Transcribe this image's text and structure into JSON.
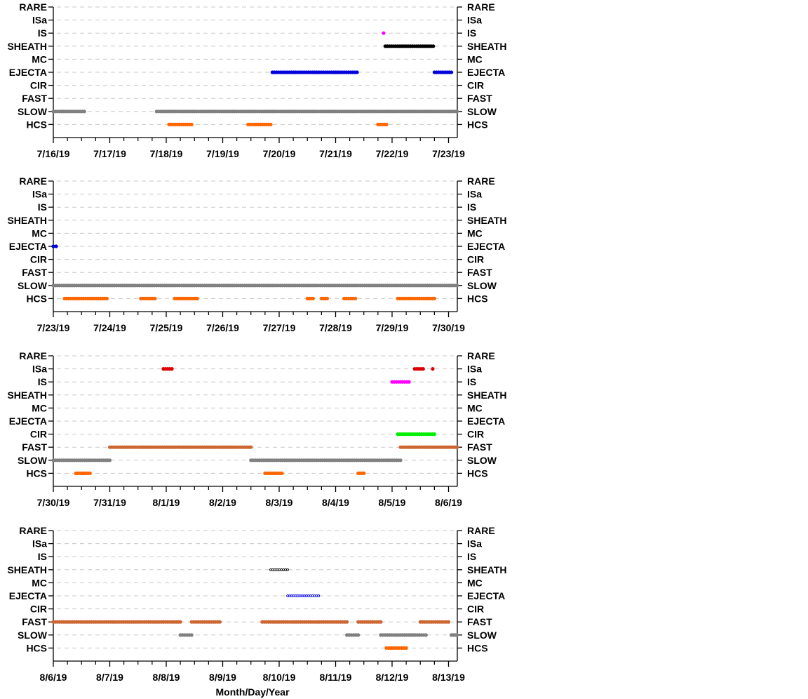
{
  "chart_data": {
    "type": "scatter",
    "xlabel": "Month/Day/Year",
    "categories": [
      "RARE",
      "ISa",
      "IS",
      "SHEATH",
      "MC",
      "EJECTA",
      "CIR",
      "FAST",
      "SLOW",
      "HCS"
    ],
    "grid": "horizontal dashed",
    "colors": {
      "SLOW": "#808080",
      "HCS": "#ff6600",
      "FAST": "#cc6633",
      "EJECTA": "#0000dd",
      "SHEATH": "#000000",
      "IS": "#ff00ff",
      "ISa": "#dd0000",
      "CIR": "#00ee00"
    },
    "panels": [
      {
        "xticks": [
          "7/16/19",
          "7/17/19",
          "7/18/19",
          "7/19/19",
          "7/20/19",
          "7/21/19",
          "7/22/19",
          "7/23/19"
        ],
        "intervals": [
          {
            "category": "SLOW",
            "start": 0.0,
            "end": 0.55
          },
          {
            "category": "SLOW",
            "start": 1.83,
            "end": 7.15
          },
          {
            "category": "HCS",
            "start": 2.05,
            "end": 2.45
          },
          {
            "category": "HCS",
            "start": 3.45,
            "end": 3.85
          },
          {
            "category": "HCS",
            "start": 5.75,
            "end": 5.9
          },
          {
            "category": "EJECTA",
            "start": 3.88,
            "end": 5.38
          },
          {
            "category": "EJECTA",
            "start": 6.75,
            "end": 7.05
          },
          {
            "category": "IS",
            "start": 5.85,
            "end": 5.85
          },
          {
            "category": "SHEATH",
            "start": 5.88,
            "end": 6.73
          }
        ]
      },
      {
        "xticks": [
          "7/23/19",
          "7/24/19",
          "7/25/19",
          "7/26/19",
          "7/27/19",
          "7/28/19",
          "7/29/19",
          "7/30/19"
        ],
        "intervals": [
          {
            "category": "EJECTA",
            "start": 0.0,
            "end": 0.05
          },
          {
            "category": "SLOW",
            "start": 0.0,
            "end": 7.15
          },
          {
            "category": "HCS",
            "start": 0.2,
            "end": 0.95
          },
          {
            "category": "HCS",
            "start": 1.55,
            "end": 1.8
          },
          {
            "category": "HCS",
            "start": 2.15,
            "end": 2.55
          },
          {
            "category": "HCS",
            "start": 4.5,
            "end": 4.6
          },
          {
            "category": "HCS",
            "start": 4.75,
            "end": 4.85
          },
          {
            "category": "HCS",
            "start": 5.15,
            "end": 5.35
          },
          {
            "category": "HCS",
            "start": 6.1,
            "end": 6.75
          }
        ]
      },
      {
        "xticks": [
          "7/30/19",
          "7/31/19",
          "8/1/19",
          "8/2/19",
          "8/3/19",
          "8/4/19",
          "8/5/19",
          "8/6/19"
        ],
        "intervals": [
          {
            "category": "SLOW",
            "start": 0.0,
            "end": 1.0
          },
          {
            "category": "SLOW",
            "start": 3.5,
            "end": 6.15
          },
          {
            "category": "HCS",
            "start": 0.4,
            "end": 0.65
          },
          {
            "category": "HCS",
            "start": 3.75,
            "end": 4.05
          },
          {
            "category": "HCS",
            "start": 5.4,
            "end": 5.5
          },
          {
            "category": "FAST",
            "start": 1.0,
            "end": 3.5
          },
          {
            "category": "FAST",
            "start": 6.15,
            "end": 7.15
          },
          {
            "category": "ISa",
            "start": 1.95,
            "end": 2.1
          },
          {
            "category": "ISa",
            "start": 6.4,
            "end": 6.55
          },
          {
            "category": "ISa",
            "start": 6.72,
            "end": 6.72
          },
          {
            "category": "IS",
            "start": 6.0,
            "end": 6.3
          },
          {
            "category": "CIR",
            "start": 6.1,
            "end": 6.75
          }
        ]
      },
      {
        "xticks": [
          "8/6/19",
          "8/7/19",
          "8/8/19",
          "8/9/19",
          "8/10/19",
          "8/11/19",
          "8/12/19",
          "8/13/19"
        ],
        "intervals": [
          {
            "category": "FAST",
            "start": 0.0,
            "end": 2.25
          },
          {
            "category": "FAST",
            "start": 2.45,
            "end": 2.95
          },
          {
            "category": "FAST",
            "start": 3.7,
            "end": 5.2
          },
          {
            "category": "FAST",
            "start": 5.4,
            "end": 5.8
          },
          {
            "category": "FAST",
            "start": 6.5,
            "end": 7.0
          },
          {
            "category": "SLOW",
            "start": 2.25,
            "end": 2.45
          },
          {
            "category": "SLOW",
            "start": 5.2,
            "end": 5.4
          },
          {
            "category": "SLOW",
            "start": 5.8,
            "end": 6.6
          },
          {
            "category": "SLOW",
            "start": 7.05,
            "end": 7.15
          },
          {
            "category": "HCS",
            "start": 5.9,
            "end": 6.25
          },
          {
            "category": "SHEATH",
            "start": 3.85,
            "end": 4.15,
            "hollow": true
          },
          {
            "category": "EJECTA",
            "start": 4.15,
            "end": 4.7,
            "hollow": true
          }
        ]
      }
    ]
  }
}
